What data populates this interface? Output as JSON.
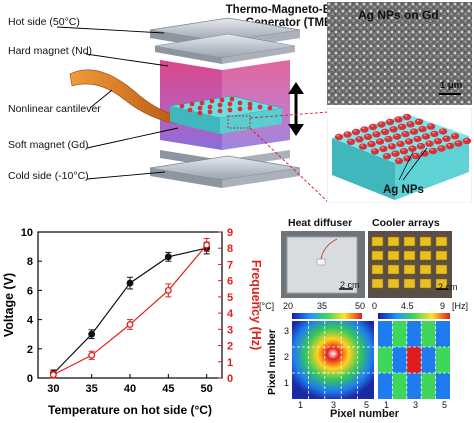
{
  "device": {
    "title_line1": "Thermo-Magneto-Electric",
    "title_line2": "Generator (TMEG)",
    "labels": {
      "hot_side": "Hot side (50°C)",
      "hard_magnet": "Hard magnet (Nd)",
      "cantilever": "Nonlinear cantilever",
      "soft_magnet": "Soft magnet (Gd)",
      "cold_side": "Cold side (-10°C)"
    },
    "colors": {
      "plate": "#b9bfc9",
      "magnet": "#c0397f",
      "gd": "#4fd3d8",
      "nps": "#d6323a",
      "cantilever": "#e07b2a"
    }
  },
  "sem": {
    "caption": "Ag NPs on Gd",
    "scale_bar": "1 μm",
    "zoom_caption": "Ag NPs"
  },
  "photos": {
    "heat_diffuser_caption": "Heat diffuser",
    "cooler_arrays_caption": "Cooler arrays",
    "scale_left": "2 cm",
    "scale_right": "2 cm"
  },
  "maps": {
    "left_unit": "[°C]",
    "left_ticks": [
      "20",
      "35",
      "50"
    ],
    "right_ticks": [
      "0",
      "4.5",
      "9"
    ],
    "right_unit": "[Hz]",
    "y_label": "Pixel number",
    "x_label": "Pixel number",
    "y_ticks": [
      "1",
      "2",
      "3"
    ],
    "x_ticks_left": [
      "1",
      "3",
      "5"
    ],
    "x_ticks_right": [
      "1",
      "3",
      "5"
    ]
  },
  "chart_data": {
    "type": "line",
    "xlabel": "Temperature on hot side (°C)",
    "ylabel_left": "Voltage (V)",
    "ylabel_right": "Frequency (Hz)",
    "x": [
      30,
      35,
      40,
      45,
      50
    ],
    "xlim": [
      28,
      52
    ],
    "ylim_left": [
      0,
      10
    ],
    "ylim_right": [
      0,
      9
    ],
    "x_ticks": [
      "30",
      "35",
      "40",
      "45",
      "50"
    ],
    "y_ticks_left": [
      "0",
      "2",
      "4",
      "6",
      "8",
      "10"
    ],
    "y_ticks_right": [
      "0",
      "1",
      "2",
      "3",
      "4",
      "5",
      "6",
      "7",
      "8",
      "9"
    ],
    "series": [
      {
        "axis": "left",
        "color": "#111111",
        "values": [
          0.3,
          3.0,
          6.5,
          8.3,
          8.9
        ],
        "err": [
          0.25,
          0.3,
          0.4,
          0.3,
          0.4
        ]
      },
      {
        "axis": "right",
        "color": "#e0201b",
        "values": [
          0.2,
          1.4,
          3.3,
          5.4,
          8.2
        ],
        "err": [
          0.2,
          0.25,
          0.3,
          0.4,
          0.4
        ]
      }
    ]
  }
}
